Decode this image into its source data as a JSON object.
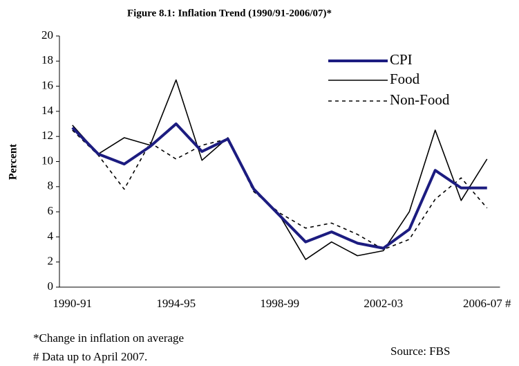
{
  "chart_data": {
    "type": "line",
    "title": "Figure 8.1: Inflation Trend (1990/91-2006/07)*",
    "y_label": "Percent",
    "annotations": [
      "*Change in inflation on average",
      "# Data up to April 2007.",
      "Source: FBS"
    ],
    "categories": [
      "1990-91",
      null,
      null,
      null,
      "1994-95",
      null,
      null,
      null,
      "1998-99",
      null,
      null,
      null,
      "2002-03",
      null,
      null,
      null,
      "2006-07 #"
    ],
    "series": [
      {
        "name": "CPI",
        "color": "#1c1c80",
        "line_weight": "thick",
        "line_style": "solid",
        "values": [
          12.7,
          10.6,
          9.8,
          11.2,
          13.0,
          10.8,
          11.8,
          7.8,
          5.7,
          3.6,
          4.4,
          3.5,
          3.1,
          4.6,
          9.3,
          7.9,
          7.9
        ]
      },
      {
        "name": "Food",
        "color": "#000000",
        "line_weight": "thin",
        "line_style": "solid",
        "values": [
          12.9,
          10.6,
          11.9,
          11.3,
          16.5,
          10.1,
          11.9,
          7.9,
          5.7,
          2.2,
          3.6,
          2.5,
          2.9,
          6.0,
          12.5,
          6.9,
          10.2
        ]
      },
      {
        "name": "Non-Food",
        "color": "#000000",
        "line_weight": "thin",
        "line_style": "dashed",
        "values": [
          12.5,
          10.5,
          7.8,
          11.5,
          10.2,
          11.3,
          11.8,
          7.6,
          5.9,
          4.7,
          5.1,
          4.2,
          3.0,
          3.8,
          7.0,
          8.7,
          6.3
        ]
      }
    ],
    "ylim": [
      0,
      20
    ],
    "yticks": [
      0,
      2,
      4,
      6,
      8,
      10,
      12,
      14,
      16,
      18,
      20
    ],
    "legend": "top-right",
    "grid": false
  }
}
